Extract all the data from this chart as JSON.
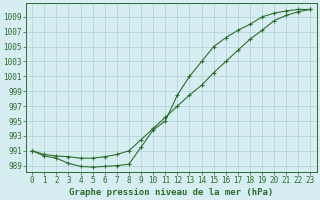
{
  "x": [
    0,
    1,
    2,
    3,
    4,
    5,
    6,
    7,
    8,
    9,
    10,
    11,
    12,
    13,
    14,
    15,
    16,
    17,
    18,
    19,
    20,
    21,
    22,
    23
  ],
  "line1": [
    991.0,
    990.5,
    990.3,
    990.2,
    990.0,
    990.0,
    990.2,
    990.5,
    991.0,
    992.5,
    994.0,
    995.5,
    997.0,
    998.5,
    999.8,
    1001.5,
    1003.0,
    1004.5,
    1006.0,
    1007.2,
    1008.5,
    1009.2,
    1009.7,
    1010.0
  ],
  "line2": [
    991.0,
    990.3,
    990.0,
    989.3,
    988.9,
    988.8,
    988.9,
    989.0,
    989.2,
    991.5,
    993.8,
    995.0,
    998.5,
    1001.0,
    1003.0,
    1005.0,
    1006.2,
    1007.2,
    1008.0,
    1009.0,
    1009.5,
    1009.8,
    1010.0,
    1010.0
  ],
  "bg_color": "#d6eef2",
  "grid_color": "#b0d0d4",
  "line_color": "#2d6e2d",
  "marker": "+",
  "ylabel_ticks": [
    989,
    991,
    993,
    995,
    997,
    999,
    1001,
    1003,
    1005,
    1007,
    1009
  ],
  "ylim": [
    988.2,
    1010.8
  ],
  "xlim": [
    -0.5,
    23.5
  ],
  "xlabel": "Graphe pression niveau de la mer (hPa)",
  "xlabel_fontsize": 6.5,
  "tick_fontsize": 5.5
}
